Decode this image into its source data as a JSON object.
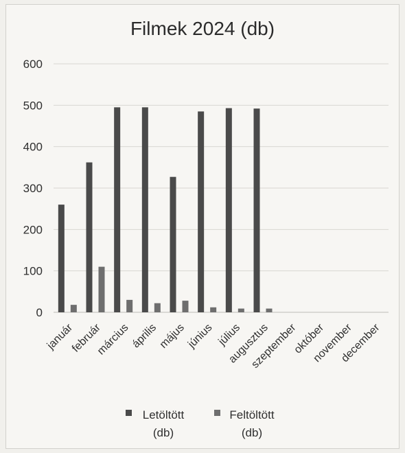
{
  "chart_data": {
    "type": "bar",
    "title": "Filmek 2024 (db)",
    "xlabel": "",
    "ylabel": "",
    "ylim": [
      0,
      600
    ],
    "yticks": [
      0,
      100,
      200,
      300,
      400,
      500,
      600
    ],
    "grid": true,
    "legend_position": "bottom",
    "categories": [
      "január",
      "február",
      "március",
      "április",
      "május",
      "június",
      "július",
      "augusztus",
      "szeptember",
      "október",
      "november",
      "december"
    ],
    "series": [
      {
        "name": "Letöltött (db)",
        "color": "#4a4a4a",
        "values": [
          260,
          362,
          495,
          495,
          327,
          485,
          493,
          492,
          null,
          null,
          null,
          null
        ]
      },
      {
        "name": "Feltöltött (db)",
        "color": "#6e6e6e",
        "values": [
          18,
          110,
          30,
          22,
          28,
          12,
          9,
          9,
          null,
          null,
          null,
          null
        ]
      }
    ]
  }
}
